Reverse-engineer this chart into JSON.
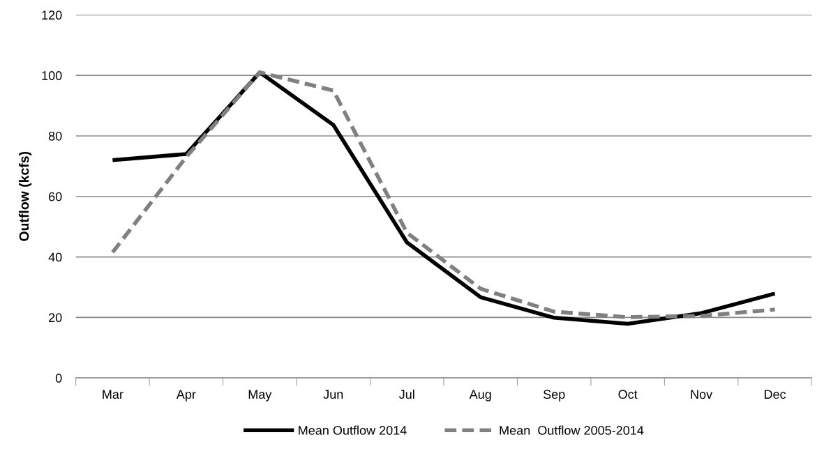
{
  "chart_data": {
    "type": "line",
    "ylabel": "Outflow (kcfs)",
    "categories": [
      "Mar",
      "Apr",
      "May",
      "Jun",
      "Jul",
      "Aug",
      "Sep",
      "Oct",
      "Nov",
      "Dec"
    ],
    "series": [
      {
        "name": "Mean Outflow 2014",
        "color": "#000000",
        "line_style": "solid",
        "values": [
          72,
          74,
          101,
          83.6,
          44.8,
          26.7,
          19.9,
          17.9,
          21.4,
          27.9
        ]
      },
      {
        "name": "Mean  Outflow 2005-2014",
        "color": "#808080",
        "line_style": "dashed",
        "values": [
          41.5,
          73,
          101,
          95,
          48,
          29.5,
          21.9,
          20.1,
          20.5,
          22.6
        ]
      }
    ],
    "ylim": [
      0,
      120
    ],
    "yticks": [
      0,
      20,
      40,
      60,
      80,
      100,
      120
    ],
    "grid": "y",
    "legend": "bottom",
    "marker": "none"
  }
}
